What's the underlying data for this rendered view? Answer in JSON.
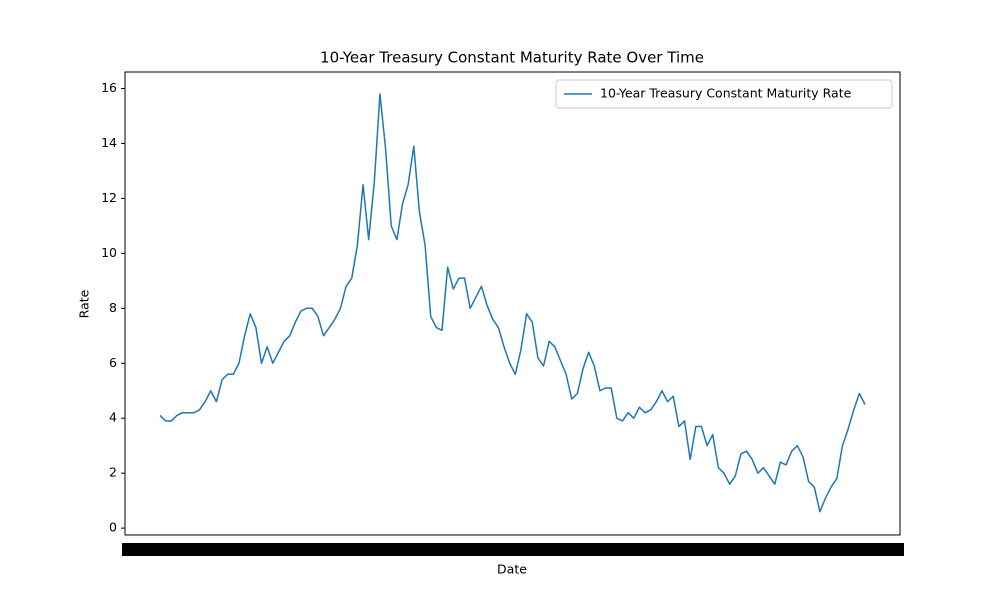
{
  "chart_data": {
    "type": "line",
    "title": "10-Year Treasury Constant Maturity Rate Over Time",
    "xlabel": "Date",
    "ylabel": "Rate",
    "series": [
      {
        "name": "10-Year Treasury Constant Maturity Rate",
        "color": "#1f77b4",
        "values": [
          4.1,
          3.9,
          3.9,
          4.1,
          4.2,
          4.2,
          4.2,
          4.3,
          4.6,
          5.0,
          4.6,
          5.4,
          5.6,
          5.6,
          6.0,
          7.0,
          7.8,
          7.3,
          6.0,
          6.6,
          6.0,
          6.4,
          6.8,
          7.0,
          7.5,
          7.9,
          8.0,
          8.0,
          7.7,
          7.0,
          7.3,
          7.6,
          8.0,
          8.8,
          9.1,
          10.3,
          12.5,
          10.5,
          12.6,
          15.8,
          13.8,
          11.0,
          10.5,
          11.8,
          12.5,
          13.9,
          11.5,
          10.3,
          7.7,
          7.3,
          7.2,
          9.5,
          8.7,
          9.1,
          9.1,
          8.0,
          8.4,
          8.8,
          8.1,
          7.6,
          7.3,
          6.6,
          6.0,
          5.6,
          6.5,
          7.8,
          7.5,
          6.2,
          5.9,
          6.8,
          6.6,
          6.1,
          5.6,
          4.7,
          4.9,
          5.8,
          6.4,
          5.9,
          5.0,
          5.1,
          5.1,
          4.0,
          3.9,
          4.2,
          4.0,
          4.4,
          4.2,
          4.3,
          4.6,
          5.0,
          4.6,
          4.8,
          3.7,
          3.9,
          2.5,
          3.7,
          3.7,
          3.0,
          3.4,
          2.2,
          2.0,
          1.6,
          1.9,
          2.7,
          2.8,
          2.5,
          2.0,
          2.2,
          1.9,
          1.6,
          2.4,
          2.3,
          2.8,
          3.0,
          2.6,
          1.7,
          1.5,
          0.6,
          1.1,
          1.5,
          1.8,
          3.0,
          3.6,
          4.3,
          4.9,
          4.5
        ]
      }
    ],
    "ylim": [
      -0.25,
      16.6
    ],
    "yticks": [
      0,
      2,
      4,
      6,
      8,
      10,
      12,
      14,
      16
    ],
    "grid": false,
    "legend": "upper right"
  }
}
